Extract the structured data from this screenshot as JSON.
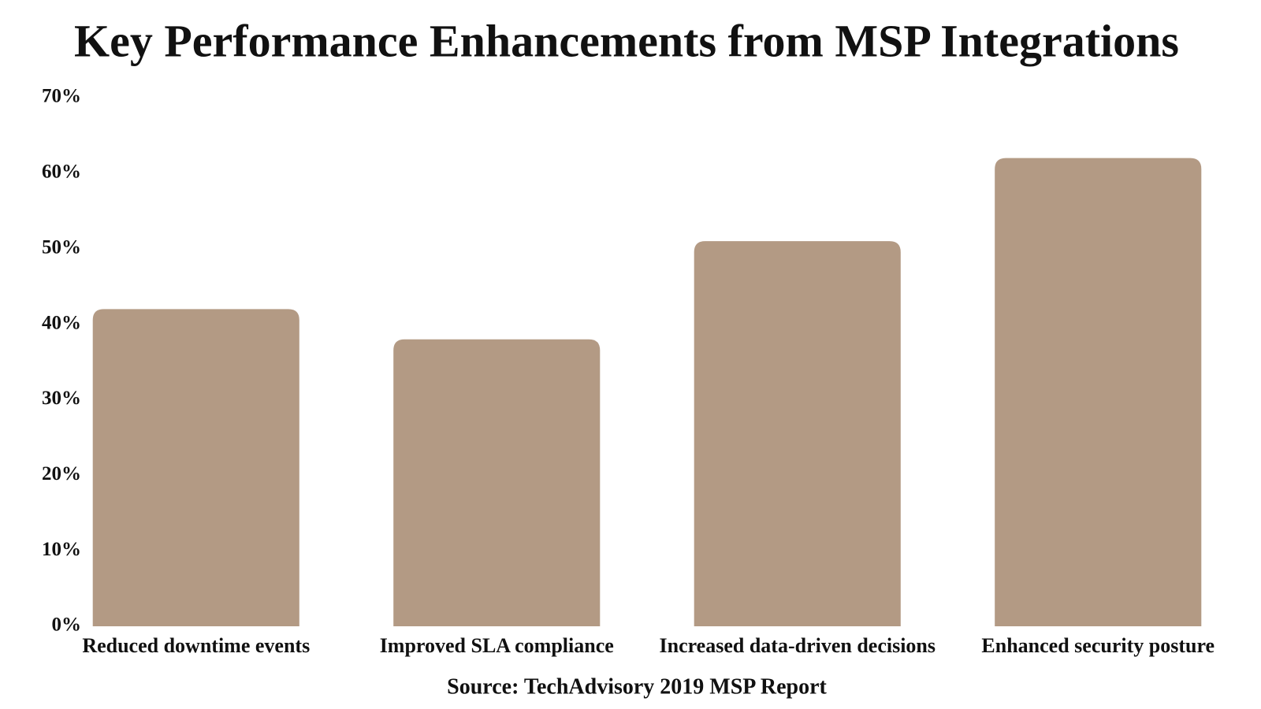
{
  "chart_data": {
    "type": "bar",
    "title": "Key Performance Enhancements from MSP Integrations",
    "source": "Source: TechAdvisory 2019 MSP Report",
    "categories": [
      "Reduced downtime events",
      "Improved SLA compliance",
      "Increased data-driven decisions",
      "Enhanced security posture"
    ],
    "values": [
      42,
      38,
      51,
      62
    ],
    "color": "#b39a84",
    "ylim": [
      0,
      70
    ],
    "yticks": [
      {
        "value": 0,
        "label": "0%"
      },
      {
        "value": 10,
        "label": "10%"
      },
      {
        "value": 20,
        "label": "20%"
      },
      {
        "value": 30,
        "label": "30%"
      },
      {
        "value": 40,
        "label": "40%"
      },
      {
        "value": 50,
        "label": "50%"
      },
      {
        "value": 60,
        "label": "60%"
      },
      {
        "value": 70,
        "label": "70%"
      }
    ],
    "grid": false
  }
}
